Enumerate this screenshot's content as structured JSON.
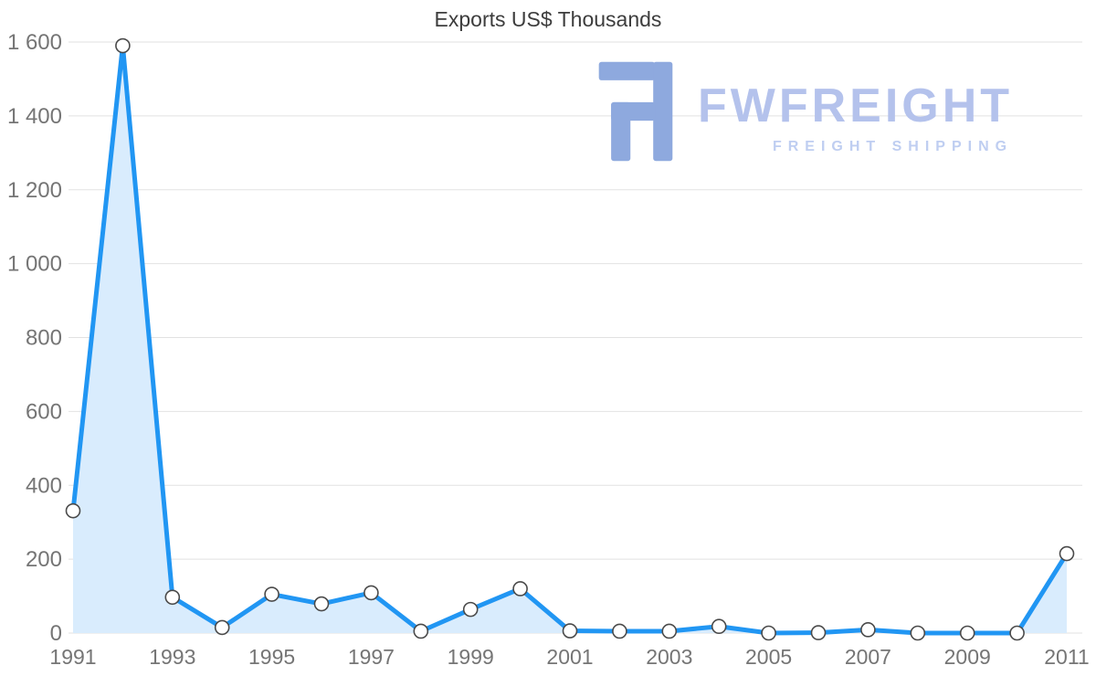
{
  "chart_data": {
    "type": "area",
    "title": "Exports US$ Thousands",
    "xlabel": "",
    "ylabel": "",
    "x": [
      1991,
      1992,
      1993,
      1994,
      1995,
      1996,
      1997,
      1998,
      1999,
      2000,
      2001,
      2002,
      2003,
      2004,
      2005,
      2006,
      2007,
      2008,
      2009,
      2010,
      2011
    ],
    "series": [
      {
        "name": "Exports US$ Thousands",
        "values": [
          331,
          1590,
          97,
          15,
          105,
          79,
          109,
          5,
          64,
          120,
          6,
          5,
          5,
          18,
          0,
          1,
          9,
          0,
          0,
          0,
          215
        ]
      }
    ],
    "ylim": [
      0,
      1600
    ],
    "yticks": [
      0,
      200,
      400,
      600,
      800,
      1000,
      1200,
      1400,
      1600
    ],
    "ytick_labels": [
      "0",
      "200",
      "400",
      "600",
      "800",
      "1 000",
      "1 200",
      "1 400",
      "1 600"
    ],
    "xtick_years": [
      1991,
      1993,
      1995,
      1997,
      1999,
      2001,
      2003,
      2005,
      2007,
      2009,
      2011
    ],
    "grid": true,
    "legend": "none"
  },
  "watermark": {
    "brand": "FWFREIGHT",
    "tagline": "FREIGHT SHIPPING"
  },
  "colors": {
    "line": "#2196f3",
    "area": "#d9ecfd",
    "marker_fill": "#ffffff",
    "marker_stroke": "#4a4a4a",
    "grid": "#e2e2e2",
    "axis_text": "#757575",
    "title_text": "#3d3d3d",
    "wm_icon": "#8ea9de",
    "wm_brand": "#b4c2ec",
    "wm_tagline": "#bfcef1"
  }
}
